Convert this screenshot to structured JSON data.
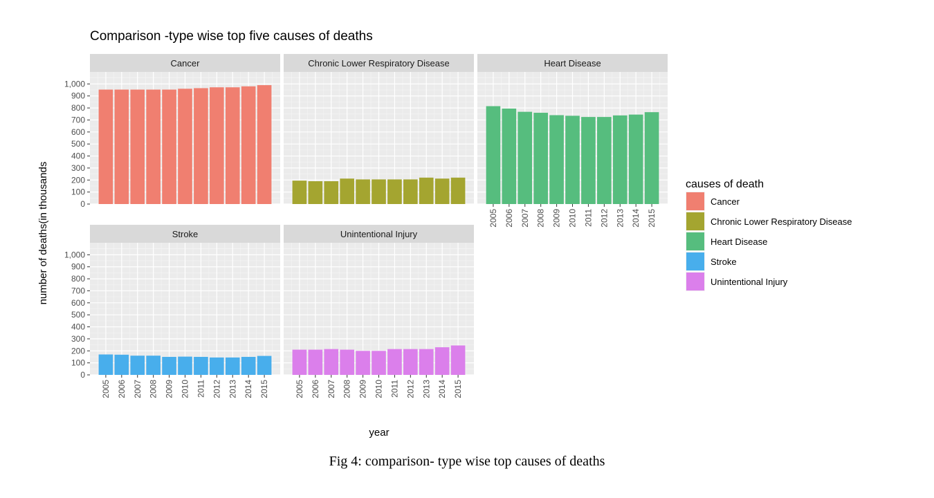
{
  "chart_data": {
    "type": "bar",
    "title": "Comparison -type wise top five causes of deaths",
    "xlabel": "year",
    "ylabel": "number of deaths(in thousands",
    "ylim": [
      0,
      1100
    ],
    "y_ticks": [
      "0",
      "100",
      "200",
      "300",
      "400",
      "500",
      "600",
      "700",
      "800",
      "900",
      "1,000"
    ],
    "categories": [
      "2005",
      "2006",
      "2007",
      "2008",
      "2009",
      "2010",
      "2011",
      "2012",
      "2013",
      "2014",
      "2015"
    ],
    "grid": true,
    "legend_position": "right",
    "legend_title": "causes of death",
    "series": [
      {
        "name": "Cancer",
        "color": "#F07F70",
        "values": [
          953,
          953,
          953,
          953,
          953,
          960,
          965,
          972,
          972,
          980,
          990
        ]
      },
      {
        "name": "Chronic Lower Respiratory Disease",
        "color": "#A4A530",
        "values": [
          195,
          190,
          190,
          212,
          205,
          205,
          205,
          205,
          220,
          212,
          220
        ]
      },
      {
        "name": "Heart Disease",
        "color": "#56BD7E",
        "values": [
          815,
          795,
          768,
          760,
          740,
          735,
          725,
          725,
          738,
          745,
          765
        ]
      },
      {
        "name": "Stroke",
        "color": "#48AEEC",
        "values": [
          170,
          168,
          160,
          160,
          150,
          152,
          150,
          145,
          145,
          150,
          158
        ]
      },
      {
        "name": "Unintentional Injury",
        "color": "#DB7FEB",
        "values": [
          210,
          210,
          215,
          210,
          200,
          200,
          215,
          215,
          215,
          230,
          245
        ]
      }
    ]
  },
  "caption": "Fig 4: comparison- type wise top causes of deaths"
}
